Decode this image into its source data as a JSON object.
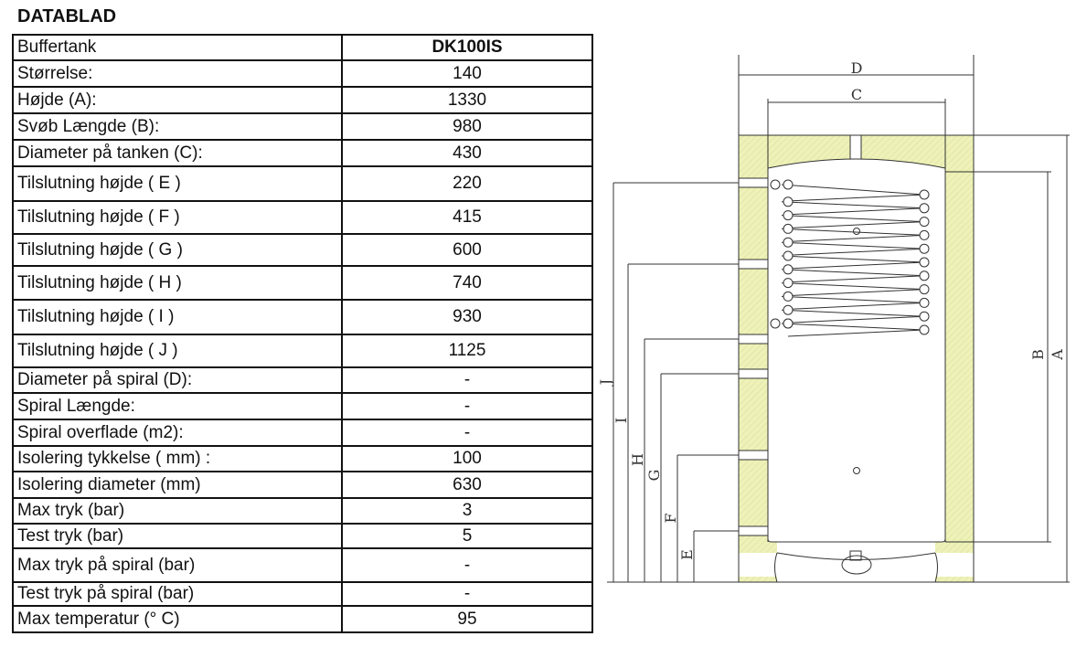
{
  "title": "DATABLAD",
  "header": {
    "label": "Buffertank",
    "value": "DK100IS"
  },
  "rows": [
    {
      "label": "Størrelse:",
      "value": "140"
    },
    {
      "label": "Højde (A):",
      "value": "1330"
    },
    {
      "label": "Svøb Længde (B):",
      "value": "980"
    },
    {
      "label": "Diameter på tanken (C):",
      "value": "430"
    },
    {
      "label": "Tilslutning højde ( E )",
      "value": "220"
    },
    {
      "label": "Tilslutning højde ( F )",
      "value": "415"
    },
    {
      "label": "Tilslutning højde ( G )",
      "value": "600"
    },
    {
      "label": "Tilslutning højde ( H )",
      "value": "740"
    },
    {
      "label": "Tilslutning højde ( I )",
      "value": "930"
    },
    {
      "label": "Tilslutning højde ( J )",
      "value": "1125"
    },
    {
      "label": "Diameter på spiral (D):",
      "value": "-"
    },
    {
      "label": "Spiral Længde:",
      "value": "-"
    },
    {
      "label": "Spiral overflade (m2):",
      "value": "-"
    },
    {
      "label": "Isolering tykkelse ( mm) :",
      "value": "100"
    },
    {
      "label": "Isolering diameter (mm)",
      "value": "630"
    },
    {
      "label": "Max tryk (bar)",
      "value": "3"
    },
    {
      "label": "Test tryk (bar)",
      "value": "5"
    },
    {
      "label": "Max tryk på spiral (bar)",
      "value": "-"
    },
    {
      "label": "Test tryk på spiral (bar)",
      "value": "-"
    },
    {
      "label": "Max temperatur (° C)",
      "value": "95"
    }
  ],
  "drawing": {
    "labels": {
      "D": "D",
      "C": "C",
      "A": "A",
      "B": "B",
      "E": "E",
      "F": "F",
      "G": "G",
      "H": "H",
      "I": "I",
      "J": "J"
    },
    "colors": {
      "insulation": "#eef2b8",
      "line": "#333333"
    }
  }
}
